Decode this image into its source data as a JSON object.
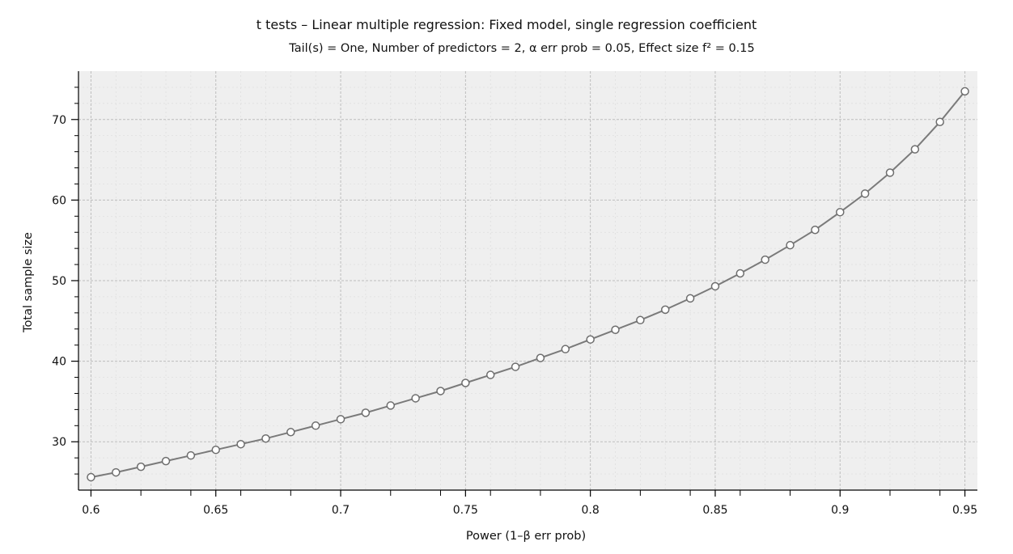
{
  "chart_data": {
    "type": "line",
    "title": "t tests – Linear multiple regression: Fixed model, single regression coefficient",
    "subtitle": "Tail(s) = One, Number of predictors = 2, α err prob = 0.05, Effect size f² = 0.15",
    "xlabel": "Power (1–β err prob)",
    "ylabel": "Total sample size",
    "xlim": [
      0.595,
      0.955
    ],
    "ylim": [
      24,
      76
    ],
    "x_ticks": [
      "0.6",
      "0.65",
      "0.7",
      "0.75",
      "0.8",
      "0.85",
      "0.9",
      "0.95"
    ],
    "y_ticks": [
      "30",
      "40",
      "50",
      "60",
      "70"
    ],
    "grid": true,
    "colors": {
      "line": "#7a7a7a",
      "marker_fill": "#ffffff",
      "plot_bg": "#efefef",
      "grid": "#bdbdbd"
    },
    "x": [
      0.6,
      0.61,
      0.62,
      0.63,
      0.64,
      0.65,
      0.66,
      0.67,
      0.68,
      0.69,
      0.7,
      0.71,
      0.72,
      0.73,
      0.74,
      0.75,
      0.76,
      0.77,
      0.78,
      0.79,
      0.8,
      0.81,
      0.82,
      0.83,
      0.84,
      0.85,
      0.86,
      0.87,
      0.88,
      0.89,
      0.9,
      0.91,
      0.92,
      0.93,
      0.94,
      0.95
    ],
    "values": [
      25.6,
      26.2,
      26.9,
      27.6,
      28.3,
      29.0,
      29.7,
      30.4,
      31.2,
      32.0,
      32.8,
      33.6,
      34.5,
      35.4,
      36.3,
      37.3,
      38.3,
      39.3,
      40.4,
      41.5,
      42.7,
      43.9,
      45.1,
      46.4,
      47.8,
      49.3,
      50.9,
      52.6,
      54.4,
      56.3,
      58.5,
      60.8,
      63.4,
      66.3,
      69.7,
      73.5
    ]
  }
}
